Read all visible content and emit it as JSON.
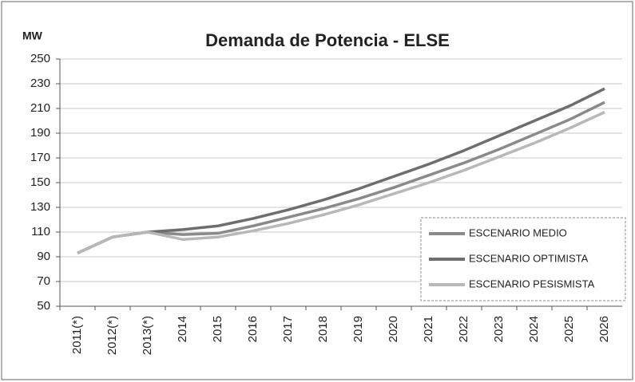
{
  "chart_data": {
    "type": "line",
    "title": "Demanda de Potencia - ELSE",
    "y_label": "MW",
    "categories": [
      "2011(*)",
      "2012(*)",
      "2013(*)",
      "2014",
      "2015",
      "2016",
      "2017",
      "2018",
      "2019",
      "2020",
      "2021",
      "2022",
      "2023",
      "2024",
      "2025",
      "2026"
    ],
    "series": [
      {
        "name": "ESCENARIO MEDIO",
        "color": "#8a8a8a",
        "values": [
          93,
          106,
          110,
          108,
          109,
          115,
          122,
          129,
          137,
          146,
          156,
          166,
          177,
          189,
          201,
          215
        ]
      },
      {
        "name": "ESCENARIO OPTIMISTA",
        "color": "#6e6e6e",
        "values": [
          93,
          106,
          110,
          112,
          115,
          121,
          128,
          136,
          145,
          155,
          165,
          176,
          188,
          200,
          212,
          226
        ]
      },
      {
        "name": "ESCENARIO PESISMISTA",
        "color": "#b8b8b8",
        "values": [
          93,
          106,
          110,
          104,
          106,
          111,
          117,
          124,
          132,
          141,
          150,
          160,
          171,
          182,
          194,
          207
        ]
      }
    ],
    "ylim": [
      50,
      250
    ],
    "yticks": [
      50,
      70,
      90,
      110,
      130,
      150,
      170,
      190,
      210,
      230,
      250
    ],
    "grid": true,
    "legend": "lower-right"
  }
}
